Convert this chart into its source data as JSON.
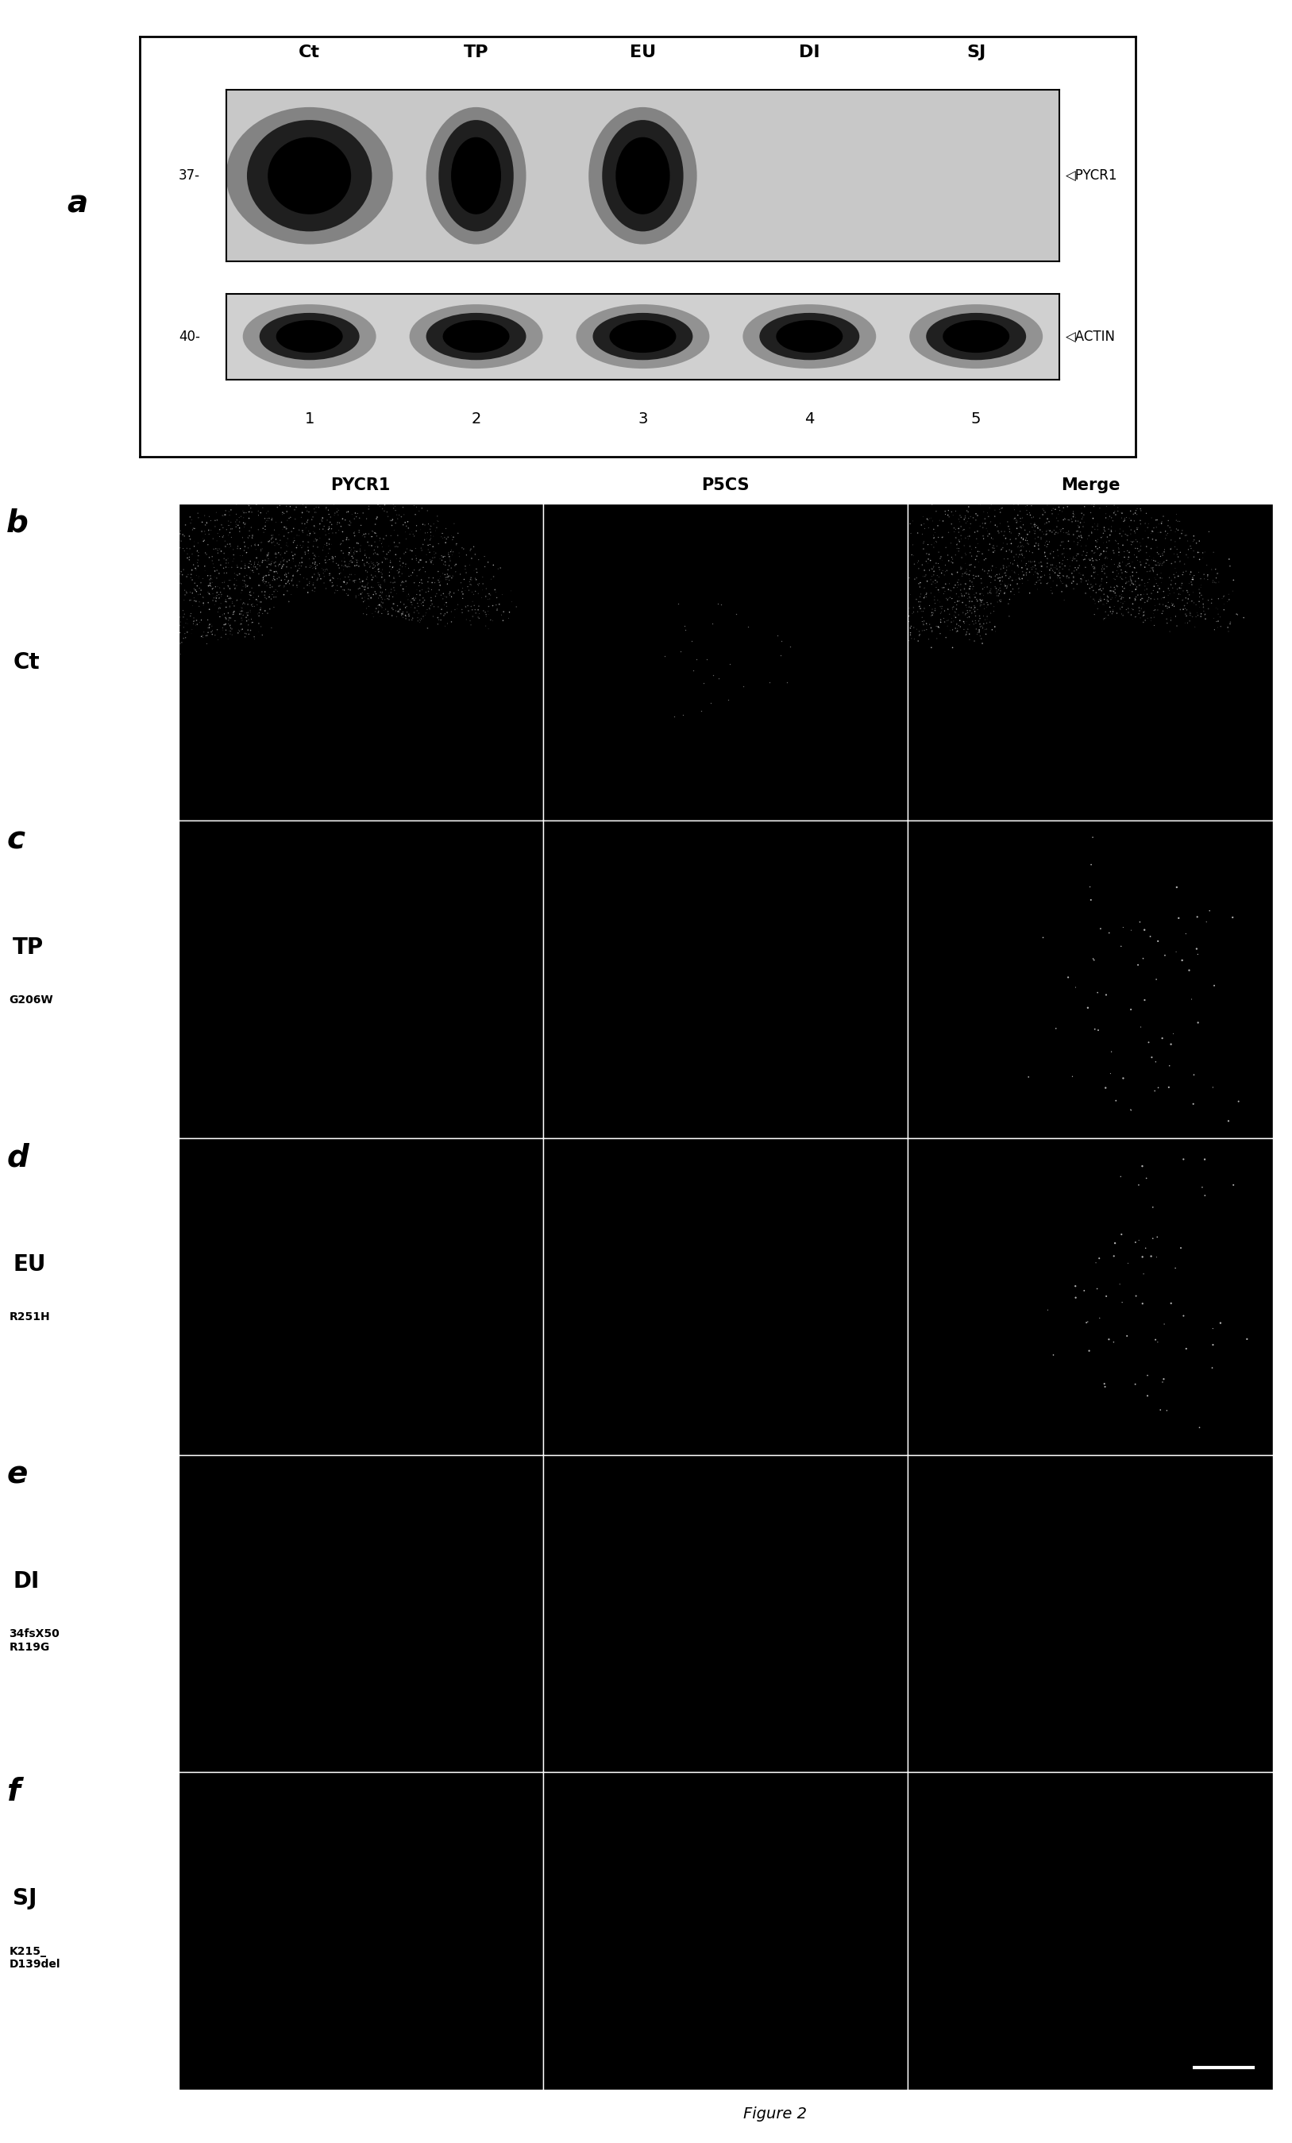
{
  "title": "Figure 2",
  "panel_a_label": "a",
  "columns": [
    "Ct",
    "TP",
    "EU",
    "DI",
    "SJ"
  ],
  "lane_numbers": [
    "1",
    "2",
    "3",
    "4",
    "5"
  ],
  "band1_label": "PYCR1",
  "band2_label": "ACTIN",
  "mw1": "37-",
  "mw2": "40-",
  "panel_letters": [
    "b",
    "c",
    "d",
    "e",
    "f"
  ],
  "row_labels": [
    "Ct",
    "TP",
    "EU",
    "DI",
    "SJ"
  ],
  "row_sublabels": [
    "",
    "G206W",
    "R251H",
    "34fsX50\nR119G",
    "K215_\nD139del"
  ],
  "col_headers": [
    "PYCR1",
    "P5CS",
    "Merge"
  ],
  "figure_label": "Figure 2",
  "panel_letter_fontsize": 28,
  "row_main_fontsize": 20,
  "row_sub_fontsize": 10,
  "col_header_fontsize": 15,
  "mw_fontsize": 12,
  "lane_fontsize": 14
}
